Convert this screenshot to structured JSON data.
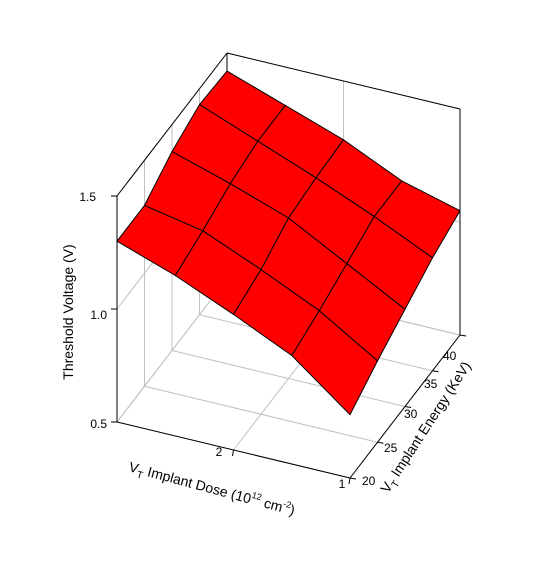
{
  "chart_data": {
    "type": "surface",
    "title": "",
    "x_axis": {
      "label_main": "V",
      "label_sub": "T",
      "label_text": " Implant Dose (10",
      "label_sup1": "12",
      "label_unit": " cm",
      "label_sup2": "-2",
      "label_close": ")",
      "range": [
        1,
        3
      ],
      "ticks": [
        "2",
        "1"
      ]
    },
    "y_axis": {
      "label_main": "V",
      "label_sub": "T",
      "label_text": " Implant Energy (KeV)",
      "range": [
        20,
        40
      ],
      "ticks": [
        "20",
        "25",
        "30",
        "35",
        "40"
      ]
    },
    "z_axis": {
      "label": "Threshold Voltage (V)",
      "range": [
        0.5,
        1.5
      ],
      "ticks": [
        "0.5",
        "1.0",
        "1.5"
      ]
    },
    "grid": true,
    "surface_color": "#ff0000",
    "dose": [
      3.0,
      2.5,
      2.0,
      1.5,
      1.0
    ],
    "energy": [
      20,
      25,
      30,
      35,
      40
    ],
    "voltage": [
      [
        1.3,
        1.3,
        1.38,
        1.43,
        1.42
      ],
      [
        1.21,
        1.25,
        1.3,
        1.33,
        1.33
      ],
      [
        1.1,
        1.14,
        1.21,
        1.23,
        1.24
      ],
      [
        0.98,
        1.02,
        1.07,
        1.12,
        1.12
      ],
      [
        0.78,
        0.86,
        0.93,
        1.0,
        1.05
      ]
    ]
  }
}
